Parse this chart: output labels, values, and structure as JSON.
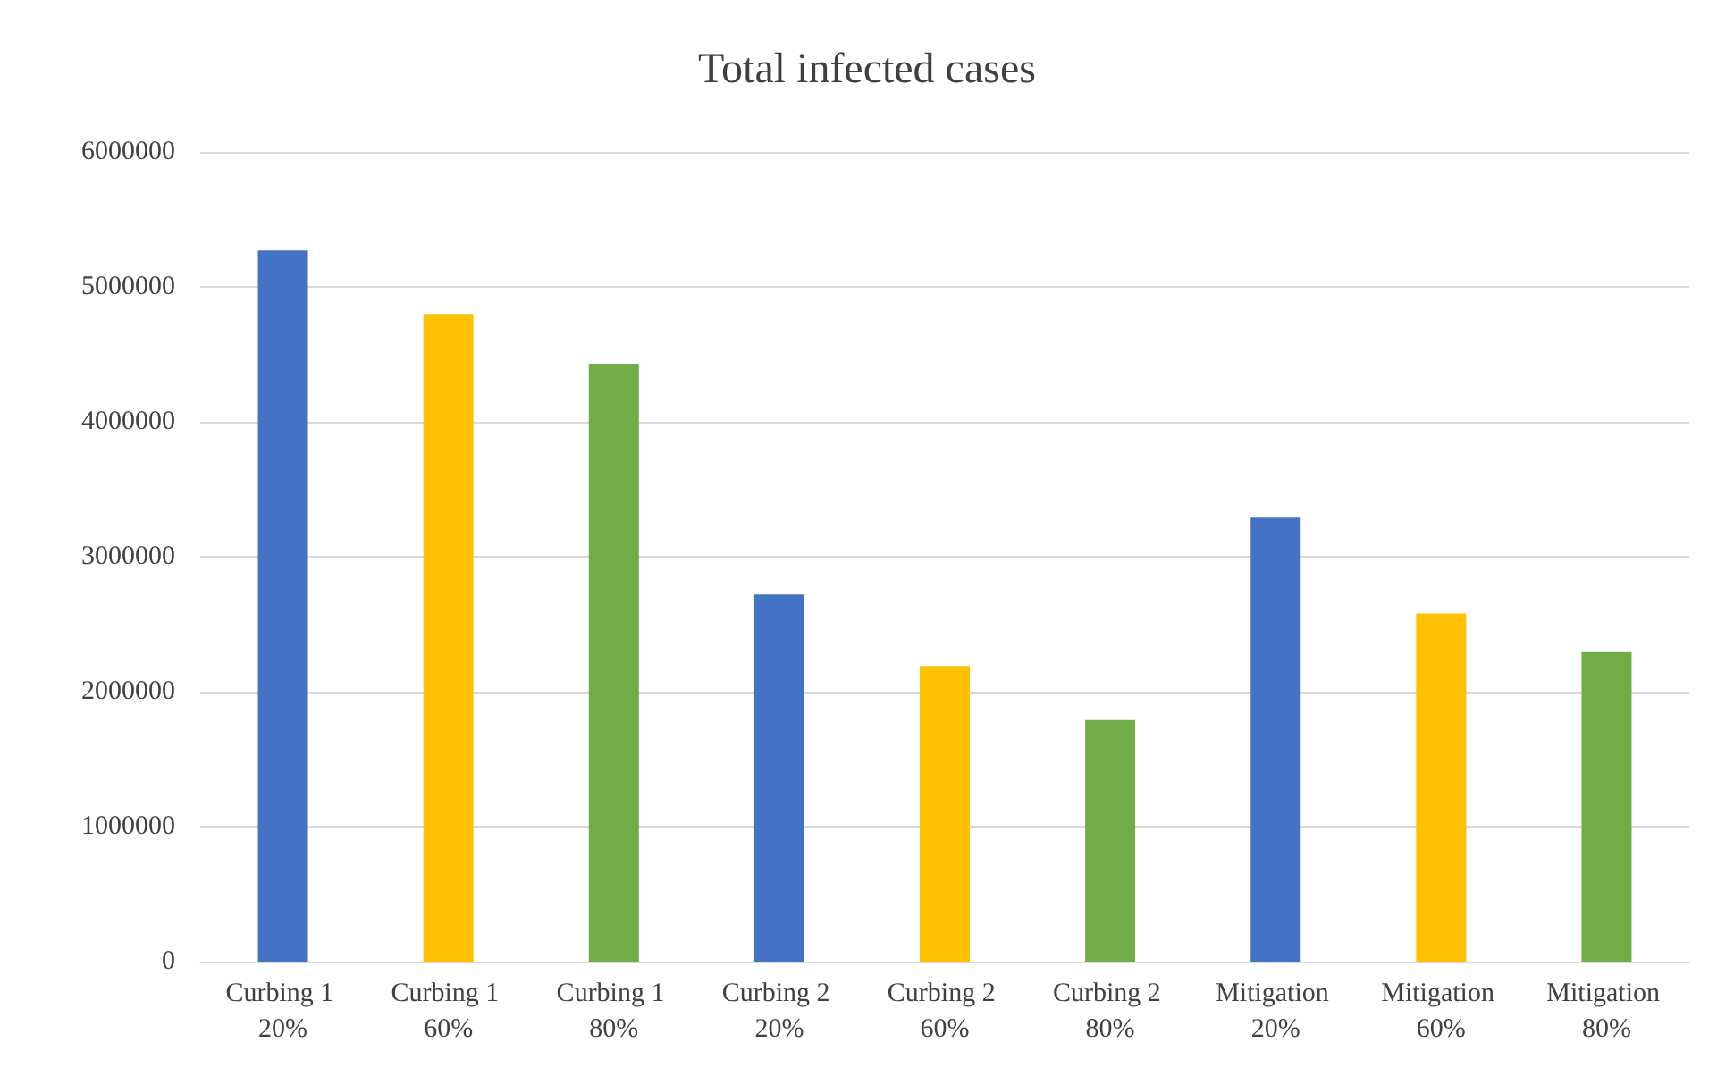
{
  "chart_data": {
    "type": "bar",
    "title": "Total infected cases",
    "categories": [
      "Curbing 1 20%",
      "Curbing 1 60%",
      "Curbing 1 80%",
      "Curbing 2 20%",
      "Curbing 2 60%",
      "Curbing 2 80%",
      "Mitigation 20%",
      "Mitigation 60%",
      "Mitigation 80%"
    ],
    "values": [
      5270000,
      4800000,
      4430000,
      2720000,
      2190000,
      1790000,
      3290000,
      2580000,
      2300000
    ],
    "colors": [
      "#4472c4",
      "#ffc000",
      "#70ad47",
      "#4472c4",
      "#ffc000",
      "#70ad47",
      "#4472c4",
      "#ffc000",
      "#70ad47"
    ],
    "ylim": [
      0,
      6000000
    ],
    "yticks": [
      0,
      1000000,
      2000000,
      3000000,
      4000000,
      5000000,
      6000000
    ],
    "grid": "y"
  }
}
